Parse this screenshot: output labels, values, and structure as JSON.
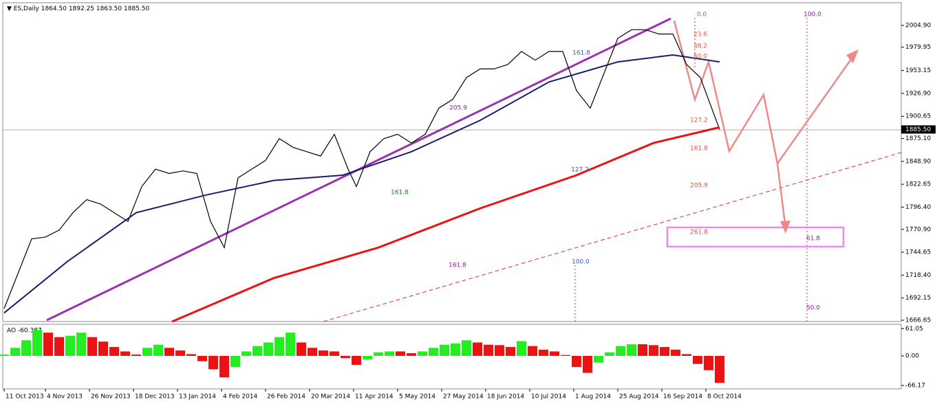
{
  "chart_data": [
    {
      "type": "line",
      "header": {
        "symbol": "ES,Daily",
        "ohlc": [
          "1864.50",
          "1892.25",
          "1863.50",
          "1885.50"
        ]
      },
      "xlim": [
        -0.5,
        326
      ],
      "ylim": [
        1665.1,
        2030.9
      ],
      "yticks": [
        {
          "value": 2004.9,
          "label": "2004.90"
        },
        1979.95,
        1953.15,
        {
          "value": 1926.9,
          "label": "1926.90"
        },
        1900.65,
        {
          "value": 1875.1,
          "label": "1875.10"
        },
        {
          "value": 1848.9,
          "label": "1848.90"
        },
        1822.65,
        {
          "value": 1796.4,
          "label": "1796.40"
        },
        {
          "value": 1770.9,
          "label": "1770.90"
        },
        1744.65,
        {
          "value": 1718.4,
          "label": "1718.40"
        },
        1692.15,
        1666.65
      ],
      "xticks": [
        {
          "value": 0,
          "label": "11 Oct 2013"
        },
        {
          "value": 15,
          "label": "4 Nov 2013"
        },
        {
          "value": 31,
          "label": "26 Nov 2013"
        },
        {
          "value": 47,
          "label": "18 Dec 2013"
        },
        {
          "value": 63,
          "label": "13 Jan 2014"
        },
        {
          "value": 79,
          "label": "4 Feb 2014"
        },
        {
          "value": 95,
          "label": "26 Feb 2014"
        },
        {
          "value": 111,
          "label": "20 Mar 2014"
        },
        {
          "value": 127,
          "label": "11 Apr 2014"
        },
        {
          "value": 143,
          "label": "5 May 2014"
        },
        {
          "value": 159,
          "label": "27 May 2014"
        },
        {
          "value": 175,
          "label": "18 Jun 2014"
        },
        {
          "value": 191,
          "label": "10 Jul 2014"
        },
        {
          "value": 207,
          "label": "1 Aug 2014"
        },
        {
          "value": 223,
          "label": "25 Aug 2014"
        },
        {
          "value": 239,
          "label": "16 Sep 2014"
        },
        {
          "value": 255,
          "label": "8 Oct 2014"
        }
      ],
      "last": {
        "value": 1885.5,
        "label": "1885.50"
      },
      "series": [
        {
          "color": "#000000",
          "x": [
            0,
            5,
            10,
            15,
            20,
            25,
            30,
            35,
            40,
            45,
            50,
            55,
            60,
            65,
            70,
            75,
            80,
            85,
            90,
            95,
            100,
            105,
            110,
            115,
            120,
            125,
            128,
            133,
            138,
            143,
            148,
            153,
            158,
            163,
            168,
            173,
            178,
            183,
            188,
            193,
            198,
            203,
            208,
            213,
            218,
            223,
            228,
            233,
            238,
            243,
            248,
            253,
            260
          ],
          "values": [
            1680,
            1720,
            1760,
            1762,
            1770,
            1790,
            1805,
            1800,
            1790,
            1780,
            1820,
            1840,
            1835,
            1838,
            1835,
            1780,
            1750,
            1830,
            1840,
            1850,
            1875,
            1865,
            1860,
            1855,
            1880,
            1840,
            1820,
            1860,
            1875,
            1880,
            1870,
            1880,
            1910,
            1920,
            1945,
            1955,
            1955,
            1960,
            1975,
            1965,
            1975,
            1975,
            1930,
            1910,
            1950,
            1990,
            2000,
            2000,
            1995,
            1995,
            1960,
            1945,
            1885.5
          ]
        },
        {
          "color": "#1a1a6e",
          "x": [
            0,
            23,
            48,
            73,
            98,
            123,
            148,
            173,
            198,
            223,
            243,
            260
          ],
          "values": [
            1675,
            1734,
            1790,
            1810,
            1827,
            1833,
            1860,
            1896,
            1940,
            1963,
            1971,
            1963
          ]
        },
        {
          "color": "#ee1111",
          "x": [
            61,
            98,
            136,
            173,
            208,
            236,
            260
          ],
          "values": [
            1665,
            1715,
            1750,
            1795,
            1833,
            1870,
            1888
          ]
        }
      ],
      "fib_groups": [
        {
          "color": "#e8553a",
          "labels": [
            "0.0",
            "23.6",
            "38.2",
            "50.0",
            "127.2",
            "161.8",
            "205.9",
            "261.8"
          ]
        },
        {
          "color": "#8a1a9a",
          "labels": [
            "100.0",
            "61.8",
            "50.0",
            "161.8",
            "205.9"
          ]
        },
        {
          "color": "#2a5ad0",
          "labels": [
            "161.8",
            "127.2",
            "100.0"
          ]
        },
        {
          "color": "#1a7a1a",
          "labels": [
            "161.8"
          ]
        }
      ]
    },
    {
      "type": "bar",
      "title": "AO -60.387",
      "xlim": [
        -0.5,
        326
      ],
      "ylim": [
        -73.9,
        70.7
      ],
      "yticks": [
        61.05,
        {
          "value": 0,
          "label": "0.00"
        },
        -66.17
      ],
      "up_color": "#22ee22",
      "down_color": "#ee1111",
      "x": [
        0,
        4,
        8,
        12,
        16,
        20,
        24,
        28,
        32,
        36,
        40,
        44,
        48,
        52,
        56,
        60,
        64,
        68,
        72,
        76,
        80,
        84,
        88,
        92,
        96,
        100,
        104,
        108,
        112,
        116,
        120,
        124,
        128,
        132,
        136,
        140,
        144,
        148,
        152,
        156,
        160,
        164,
        168,
        172,
        176,
        180,
        184,
        188,
        192,
        196,
        200,
        204,
        208,
        212,
        216,
        220,
        224,
        228,
        232,
        236,
        240,
        244,
        248,
        252,
        256,
        260
      ],
      "values": [
        3,
        18,
        35,
        58,
        52,
        42,
        45,
        52,
        42,
        32,
        20,
        10,
        3,
        18,
        25,
        18,
        12,
        4,
        -12,
        -30,
        -48,
        -25,
        10,
        22,
        30,
        42,
        52,
        30,
        18,
        12,
        10,
        -5,
        -20,
        -8,
        8,
        10,
        10,
        6,
        10,
        18,
        25,
        28,
        35,
        30,
        25,
        24,
        20,
        33,
        22,
        14,
        10,
        2,
        -25,
        -38,
        -15,
        8,
        22,
        26,
        26,
        24,
        20,
        14,
        4,
        -18,
        -32,
        -60.387
      ]
    }
  ]
}
